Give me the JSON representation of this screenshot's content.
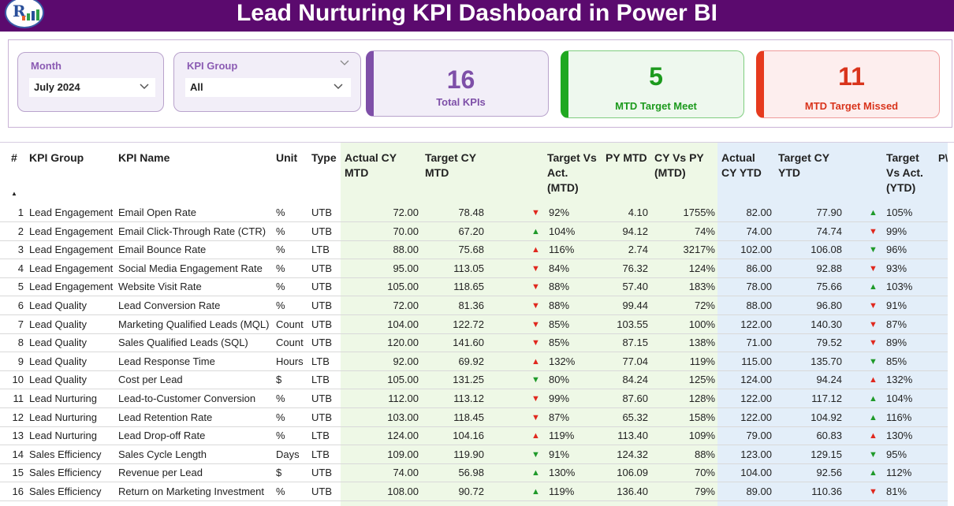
{
  "header": {
    "title": "Lead Nurturing KPI Dashboard in Power BI"
  },
  "filters": {
    "month": {
      "label": "Month",
      "value": "July 2024"
    },
    "kpi_group": {
      "label": "KPI Group",
      "value": "All"
    }
  },
  "cards": {
    "total": {
      "value": "16",
      "caption": "Total KPIs"
    },
    "meet": {
      "value": "5",
      "caption": "MTD Target Meet"
    },
    "missed": {
      "value": "11",
      "caption": "MTD Target Missed"
    }
  },
  "colors": {
    "title_bg": "#5b0a6e",
    "accent_purple": "#7e4fa8",
    "meet_green": "#20a821",
    "missed_red": "#e63a1e",
    "mtd_bg": "#eef8e6",
    "ytd_bg": "#e3eef9"
  },
  "table": {
    "columns": {
      "num": "#",
      "group": "KPI Group",
      "name": "KPI Name",
      "unit": "Unit",
      "type": "Type",
      "actual_mtd": [
        "Actual CY",
        "MTD"
      ],
      "target_mtd": [
        "Target CY",
        "MTD"
      ],
      "tva_mtd": [
        "Target Vs",
        "Act.",
        "(MTD)"
      ],
      "py_mtd": "PY MTD",
      "cyvspy_mtd": [
        "CY Vs PY",
        "(MTD)"
      ],
      "actual_ytd": [
        "Actual",
        "CY YTD"
      ],
      "target_ytd": [
        "Target CY",
        "YTD"
      ],
      "tva_ytd": [
        "Target",
        "Vs Act.",
        "(YTD)"
      ],
      "py_cut": "P\\"
    },
    "rows": [
      {
        "n": "1",
        "group": "Lead Engagement",
        "name": "Email Open Rate",
        "unit": "%",
        "type": "UTB",
        "act_mtd": "72.00",
        "tgt_mtd": "78.48",
        "ic_mtd": "▼",
        "cls_mtd": "dn",
        "tva_mtd": "92%",
        "py_mtd": "4.10",
        "cyvspy": "1755%",
        "act_ytd": "82.00",
        "tgt_ytd": "77.90",
        "ic_ytd": "▲",
        "cls_ytd": "up",
        "tva_ytd": "105%"
      },
      {
        "n": "2",
        "group": "Lead Engagement",
        "name": "Email Click-Through Rate (CTR)",
        "unit": "%",
        "type": "UTB",
        "act_mtd": "70.00",
        "tgt_mtd": "67.20",
        "ic_mtd": "▲",
        "cls_mtd": "up",
        "tva_mtd": "104%",
        "py_mtd": "94.12",
        "cyvspy": "74%",
        "act_ytd": "74.00",
        "tgt_ytd": "74.74",
        "ic_ytd": "▼",
        "cls_ytd": "dn",
        "tva_ytd": "99%"
      },
      {
        "n": "3",
        "group": "Lead Engagement",
        "name": "Email Bounce Rate",
        "unit": "%",
        "type": "LTB",
        "act_mtd": "88.00",
        "tgt_mtd": "75.68",
        "ic_mtd": "▲",
        "cls_mtd": "upr",
        "tva_mtd": "116%",
        "py_mtd": "2.74",
        "cyvspy": "3217%",
        "act_ytd": "102.00",
        "tgt_ytd": "106.08",
        "ic_ytd": "▼",
        "cls_ytd": "dng",
        "tva_ytd": "96%"
      },
      {
        "n": "4",
        "group": "Lead Engagement",
        "name": "Social Media Engagement Rate",
        "unit": "%",
        "type": "UTB",
        "act_mtd": "95.00",
        "tgt_mtd": "113.05",
        "ic_mtd": "▼",
        "cls_mtd": "dn",
        "tva_mtd": "84%",
        "py_mtd": "76.32",
        "cyvspy": "124%",
        "act_ytd": "86.00",
        "tgt_ytd": "92.88",
        "ic_ytd": "▼",
        "cls_ytd": "dn",
        "tva_ytd": "93%"
      },
      {
        "n": "5",
        "group": "Lead Engagement",
        "name": "Website Visit Rate",
        "unit": "%",
        "type": "UTB",
        "act_mtd": "105.00",
        "tgt_mtd": "118.65",
        "ic_mtd": "▼",
        "cls_mtd": "dn",
        "tva_mtd": "88%",
        "py_mtd": "57.40",
        "cyvspy": "183%",
        "act_ytd": "78.00",
        "tgt_ytd": "75.66",
        "ic_ytd": "▲",
        "cls_ytd": "up",
        "tva_ytd": "103%"
      },
      {
        "n": "6",
        "group": "Lead Quality",
        "name": "Lead Conversion Rate",
        "unit": "%",
        "type": "UTB",
        "act_mtd": "72.00",
        "tgt_mtd": "81.36",
        "ic_mtd": "▼",
        "cls_mtd": "dn",
        "tva_mtd": "88%",
        "py_mtd": "99.44",
        "cyvspy": "72%",
        "act_ytd": "88.00",
        "tgt_ytd": "96.80",
        "ic_ytd": "▼",
        "cls_ytd": "dn",
        "tva_ytd": "91%"
      },
      {
        "n": "7",
        "group": "Lead Quality",
        "name": "Marketing Qualified Leads (MQL)",
        "unit": "Count",
        "type": "UTB",
        "act_mtd": "104.00",
        "tgt_mtd": "122.72",
        "ic_mtd": "▼",
        "cls_mtd": "dn",
        "tva_mtd": "85%",
        "py_mtd": "103.55",
        "cyvspy": "100%",
        "act_ytd": "122.00",
        "tgt_ytd": "140.30",
        "ic_ytd": "▼",
        "cls_ytd": "dn",
        "tva_ytd": "87%"
      },
      {
        "n": "8",
        "group": "Lead Quality",
        "name": "Sales Qualified Leads (SQL)",
        "unit": "Count",
        "type": "UTB",
        "act_mtd": "120.00",
        "tgt_mtd": "141.60",
        "ic_mtd": "▼",
        "cls_mtd": "dn",
        "tva_mtd": "85%",
        "py_mtd": "87.15",
        "cyvspy": "138%",
        "act_ytd": "71.00",
        "tgt_ytd": "79.52",
        "ic_ytd": "▼",
        "cls_ytd": "dn",
        "tva_ytd": "89%"
      },
      {
        "n": "9",
        "group": "Lead Quality",
        "name": "Lead Response Time",
        "unit": "Hours",
        "type": "LTB",
        "act_mtd": "92.00",
        "tgt_mtd": "69.92",
        "ic_mtd": "▲",
        "cls_mtd": "upr",
        "tva_mtd": "132%",
        "py_mtd": "77.04",
        "cyvspy": "119%",
        "act_ytd": "115.00",
        "tgt_ytd": "135.70",
        "ic_ytd": "▼",
        "cls_ytd": "dng",
        "tva_ytd": "85%"
      },
      {
        "n": "10",
        "group": "Lead Quality",
        "name": "Cost per Lead",
        "unit": "$",
        "type": "LTB",
        "act_mtd": "105.00",
        "tgt_mtd": "131.25",
        "ic_mtd": "▼",
        "cls_mtd": "dng",
        "tva_mtd": "80%",
        "py_mtd": "84.24",
        "cyvspy": "125%",
        "act_ytd": "124.00",
        "tgt_ytd": "94.24",
        "ic_ytd": "▲",
        "cls_ytd": "upr",
        "tva_ytd": "132%"
      },
      {
        "n": "11",
        "group": "Lead Nurturing",
        "name": "Lead-to-Customer Conversion",
        "unit": "%",
        "type": "UTB",
        "act_mtd": "112.00",
        "tgt_mtd": "113.12",
        "ic_mtd": "▼",
        "cls_mtd": "dn",
        "tva_mtd": "99%",
        "py_mtd": "87.60",
        "cyvspy": "128%",
        "act_ytd": "122.00",
        "tgt_ytd": "117.12",
        "ic_ytd": "▲",
        "cls_ytd": "up",
        "tva_ytd": "104%"
      },
      {
        "n": "12",
        "group": "Lead Nurturing",
        "name": "Lead Retention Rate",
        "unit": "%",
        "type": "UTB",
        "act_mtd": "103.00",
        "tgt_mtd": "118.45",
        "ic_mtd": "▼",
        "cls_mtd": "dn",
        "tva_mtd": "87%",
        "py_mtd": "65.32",
        "cyvspy": "158%",
        "act_ytd": "122.00",
        "tgt_ytd": "104.92",
        "ic_ytd": "▲",
        "cls_ytd": "up",
        "tva_ytd": "116%"
      },
      {
        "n": "13",
        "group": "Lead Nurturing",
        "name": "Lead Drop-off Rate",
        "unit": "%",
        "type": "LTB",
        "act_mtd": "124.00",
        "tgt_mtd": "104.16",
        "ic_mtd": "▲",
        "cls_mtd": "upr",
        "tva_mtd": "119%",
        "py_mtd": "113.40",
        "cyvspy": "109%",
        "act_ytd": "79.00",
        "tgt_ytd": "60.83",
        "ic_ytd": "▲",
        "cls_ytd": "upr",
        "tva_ytd": "130%"
      },
      {
        "n": "14",
        "group": "Sales Efficiency",
        "name": "Sales Cycle Length",
        "unit": "Days",
        "type": "LTB",
        "act_mtd": "109.00",
        "tgt_mtd": "119.90",
        "ic_mtd": "▼",
        "cls_mtd": "dng",
        "tva_mtd": "91%",
        "py_mtd": "124.32",
        "cyvspy": "88%",
        "act_ytd": "123.00",
        "tgt_ytd": "129.15",
        "ic_ytd": "▼",
        "cls_ytd": "dng",
        "tva_ytd": "95%"
      },
      {
        "n": "15",
        "group": "Sales Efficiency",
        "name": "Revenue per Lead",
        "unit": "$",
        "type": "UTB",
        "act_mtd": "74.00",
        "tgt_mtd": "56.98",
        "ic_mtd": "▲",
        "cls_mtd": "up",
        "tva_mtd": "130%",
        "py_mtd": "106.09",
        "cyvspy": "70%",
        "act_ytd": "104.00",
        "tgt_ytd": "92.56",
        "ic_ytd": "▲",
        "cls_ytd": "up",
        "tva_ytd": "112%"
      },
      {
        "n": "16",
        "group": "Sales Efficiency",
        "name": "Return on Marketing Investment",
        "unit": "%",
        "type": "UTB",
        "act_mtd": "108.00",
        "tgt_mtd": "90.72",
        "ic_mtd": "▲",
        "cls_mtd": "up",
        "tva_mtd": "119%",
        "py_mtd": "136.40",
        "cyvspy": "79%",
        "act_ytd": "89.00",
        "tgt_ytd": "110.36",
        "ic_ytd": "▼",
        "cls_ytd": "dn",
        "tva_ytd": "81%"
      }
    ]
  }
}
